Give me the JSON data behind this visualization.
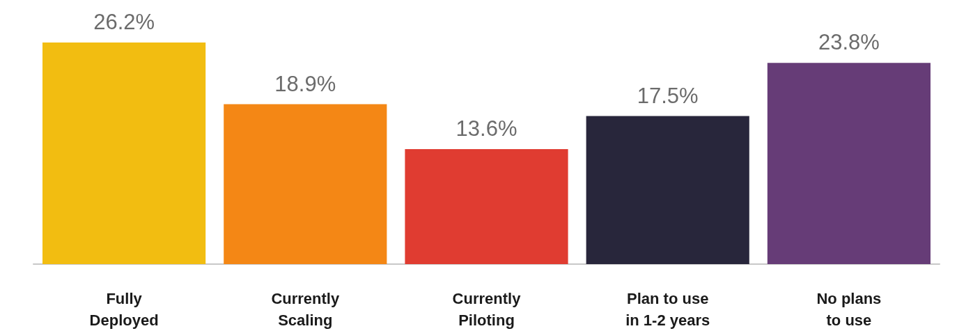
{
  "chart_data": {
    "type": "bar",
    "categories": [
      "Fully\nDeployed",
      "Currently\nScaling",
      "Currently\nPiloting",
      "Plan to use\nin 1-2 years",
      "No plans\nto use"
    ],
    "values": [
      26.2,
      18.9,
      13.6,
      17.5,
      23.8
    ],
    "colors": [
      "#f2bd11",
      "#f48715",
      "#e03c31",
      "#28263b",
      "#663c77"
    ],
    "value_labels": [
      "26.2%",
      "18.9%",
      "13.6%",
      "17.5%",
      "23.8%"
    ]
  }
}
